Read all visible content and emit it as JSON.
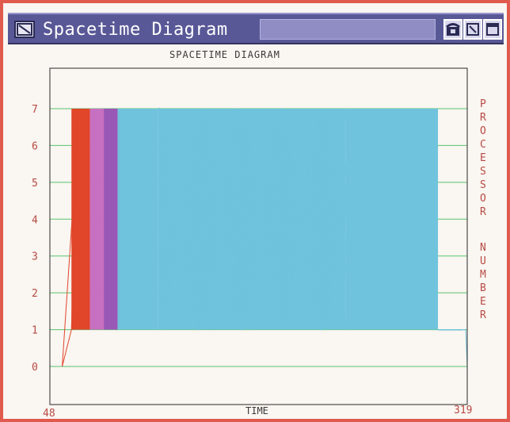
{
  "window": {
    "title": "Spacetime Diagram",
    "icons": [
      "system-menu-icon",
      "phone-icon",
      "resize-icon",
      "maximize-icon"
    ]
  },
  "chart_data": {
    "type": "line",
    "title": "SPACETIME DIAGRAM",
    "xlabel": "TIME",
    "ylabel": "PROCESSOR NUMBER",
    "xlim": [
      48,
      319
    ],
    "ylim": [
      0,
      7
    ],
    "x_tick_labels": [
      "48",
      "319"
    ],
    "y_tick_labels": [
      "0",
      "1",
      "2",
      "3",
      "4",
      "5",
      "6",
      "7"
    ],
    "grid": true,
    "colors": {
      "red": "#e1452a",
      "pink": "#c76fc0",
      "violet": "#9a58b6",
      "cyan": "#6fc3dd",
      "grid": "#58c46e"
    },
    "regions": [
      {
        "color": "red",
        "x": [
          62,
          74
        ],
        "y": [
          1,
          7
        ]
      },
      {
        "color": "pink",
        "x": [
          74,
          83
        ],
        "y": [
          1,
          7
        ]
      },
      {
        "color": "violet",
        "x": [
          83,
          92
        ],
        "y": [
          1,
          7
        ]
      },
      {
        "color": "cyan",
        "x": [
          92,
          118
        ],
        "y": [
          1,
          7
        ]
      },
      {
        "color": "cyan",
        "x": [
          118,
          240
        ],
        "y": [
          1,
          7
        ]
      },
      {
        "color": "cyan",
        "x": [
          240,
          300
        ],
        "y": [
          1,
          7
        ]
      },
      {
        "color": "cyan",
        "x": [
          300,
          316
        ],
        "y": [
          1,
          1
        ]
      }
    ]
  }
}
